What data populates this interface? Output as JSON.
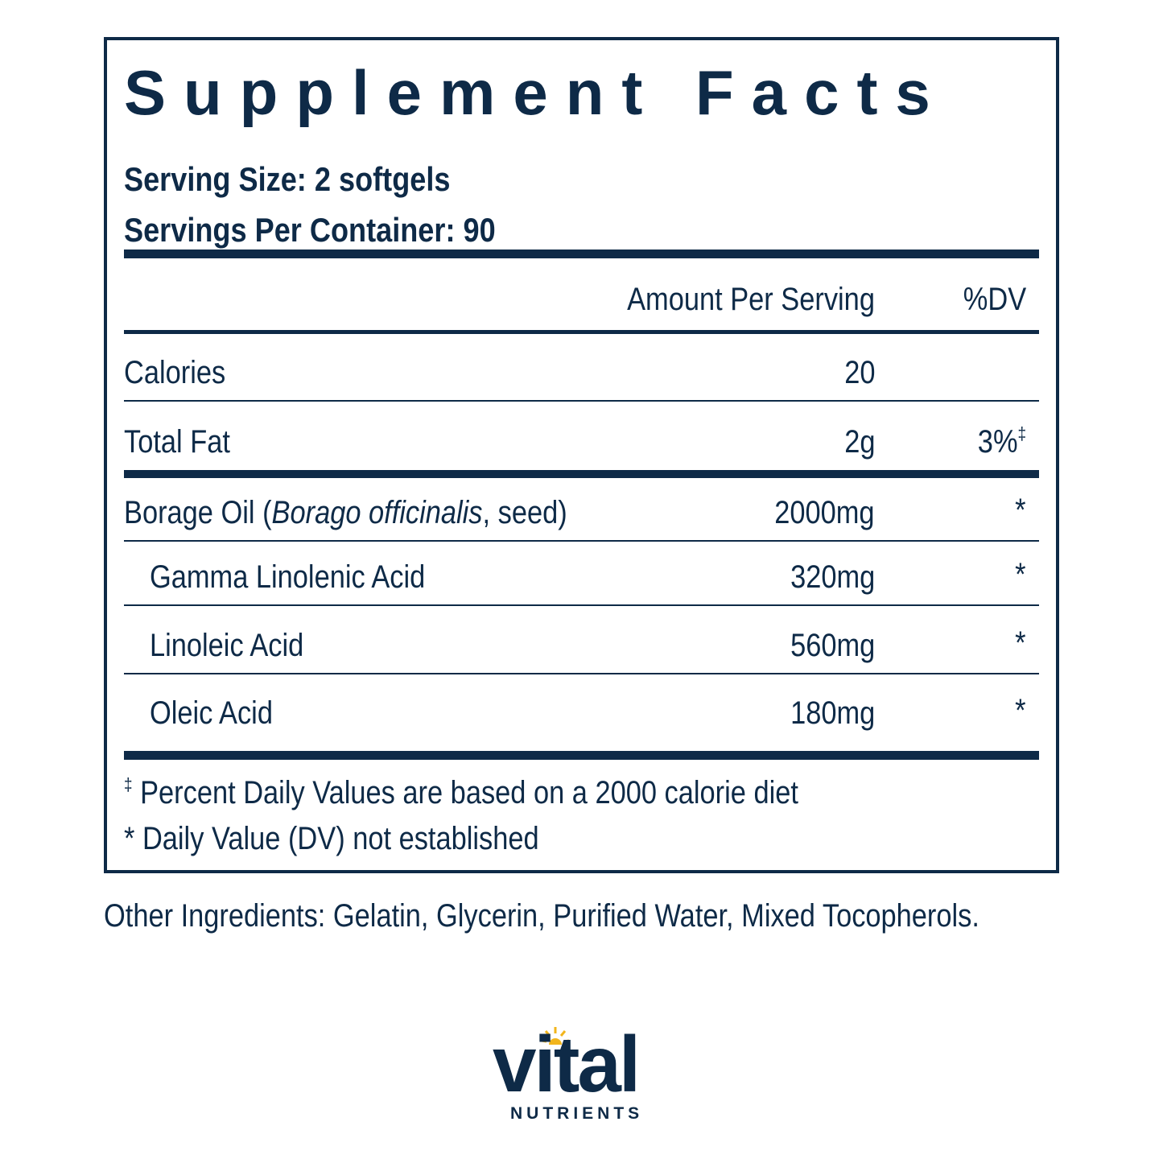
{
  "facts": {
    "title": "Supplement Facts",
    "serving_size": "Serving Size: 2 softgels",
    "servings_per_container": "Servings Per Container: 90",
    "header": {
      "amount": "Amount Per Serving",
      "dv": "%DV"
    },
    "rows": [
      {
        "name": "Calories",
        "amount": "20",
        "dv": ""
      },
      {
        "name": "Total Fat",
        "amount": "2g",
        "dv": "3%",
        "dv_mark": "‡"
      },
      {
        "name_prefix": "Borage Oil (",
        "name_italic": "Borago officinalis",
        "name_suffix": ", seed)",
        "amount": "2000mg",
        "dv": "*"
      },
      {
        "name": "Gamma Linolenic Acid",
        "amount": "320mg",
        "dv": "*"
      },
      {
        "name": "Linoleic Acid",
        "amount": "560mg",
        "dv": "*"
      },
      {
        "name": "Oleic Acid",
        "amount": "180mg",
        "dv": "*"
      }
    ],
    "footnotes": [
      {
        "mark": "‡",
        "text": " Percent Daily Values are based on a 2000 calorie diet"
      },
      {
        "mark": "",
        "text": "* Daily Value (DV) not established"
      }
    ]
  },
  "other_ingredients": "Other Ingredients: Gelatin, Glycerin, Purified Water, Mixed Tocopherols.",
  "logo": {
    "word": "vital",
    "subtitle": "NUTRIENTS"
  },
  "colors": {
    "navy": "#0e2a47",
    "sun": "#f2b51c"
  }
}
